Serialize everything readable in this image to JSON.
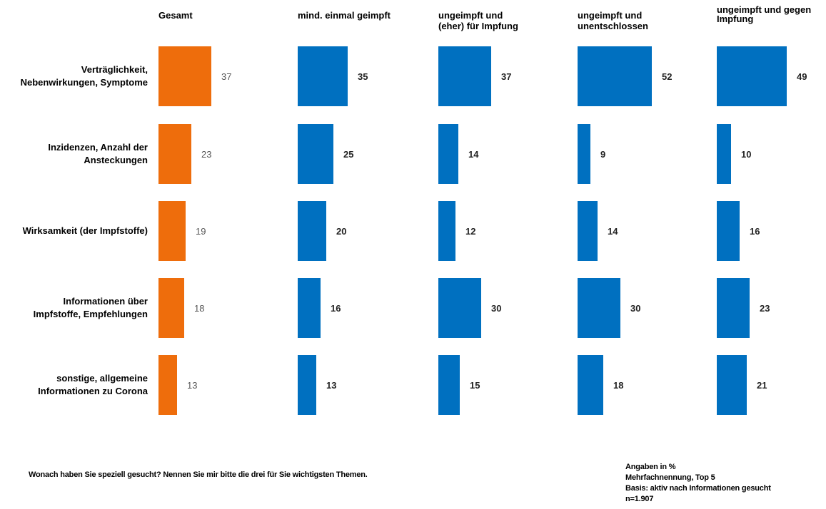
{
  "chart_data": {
    "type": "bar",
    "columns": [
      "Gesamt",
      "mind. einmal geimpft",
      "ungeimpft und\n(eher) für Impfung",
      "ungeimpft und\nunentschlossen",
      "ungeimpft und gegen\nImpfung"
    ],
    "categories": [
      "Verträglichkeit,\nNebenwirkungen, Symptome",
      "Inzidenzen, Anzahl der\nAnsteckungen",
      "Wirksamkeit (der Impfstoffe)",
      "Informationen über\nImpfstoffe, Empfehlungen",
      "sonstige, allgemeine\nInformationen zu Corona"
    ],
    "series": [
      {
        "name": "Gesamt",
        "values": [
          37,
          23,
          19,
          18,
          13
        ],
        "color": "#EE6D0C"
      },
      {
        "name": "mind. einmal geimpft",
        "values": [
          35,
          25,
          20,
          16,
          13
        ],
        "color": "#0070C0"
      },
      {
        "name": "ungeimpft und (eher) für Impfung",
        "values": [
          37,
          14,
          12,
          30,
          15
        ],
        "color": "#0070C0"
      },
      {
        "name": "ungeimpft und unentschlossen",
        "values": [
          52,
          9,
          14,
          30,
          18
        ],
        "color": "#0070C0"
      },
      {
        "name": "ungeimpft und gegen Impfung",
        "values": [
          49,
          10,
          16,
          23,
          21
        ],
        "color": "#0070C0"
      }
    ]
  },
  "footer": {
    "question": "Wonach haben Sie speziell gesucht? Nennen Sie mir bitte die drei für Sie wichtigsten Themen.",
    "notes": [
      "Angaben in %",
      "Mehrfachnennung, Top 5",
      "Basis: aktiv nach Informationen gesucht",
      "n=1.907"
    ]
  }
}
